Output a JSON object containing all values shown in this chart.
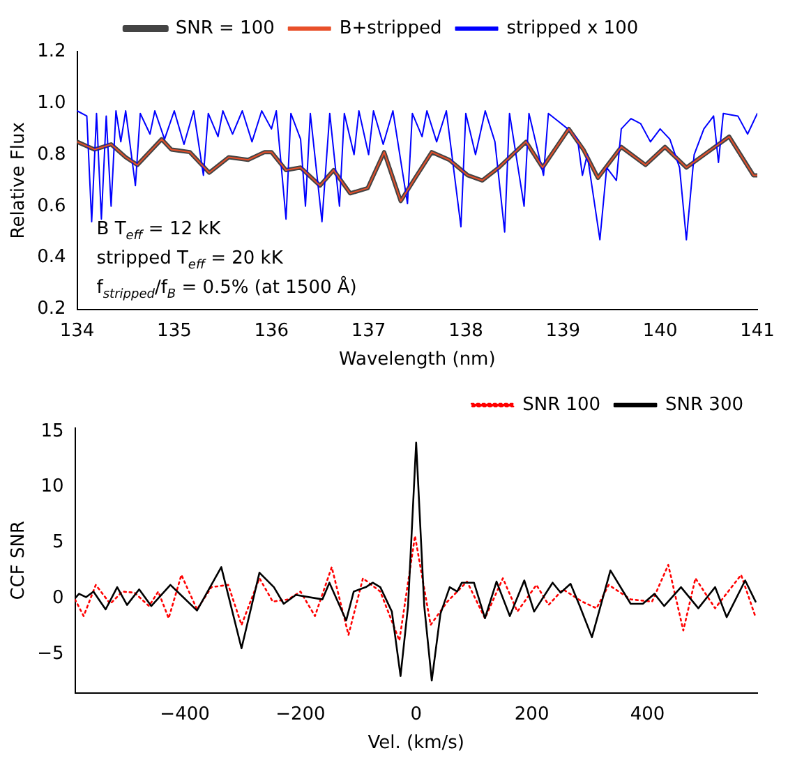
{
  "chart_data": [
    {
      "type": "line",
      "xlabel": "Wavelength (nm)",
      "ylabel": "Relative Flux",
      "xlim": [
        134,
        141
      ],
      "ylim": [
        0.2,
        1.2
      ],
      "xticks": [
        134,
        135,
        136,
        137,
        138,
        139,
        140,
        141
      ],
      "yticks": [
        0.2,
        0.4,
        0.6,
        0.8,
        {
          "value": 1,
          "label": "1.0"
        },
        1.2
      ],
      "grid": false,
      "legend": "top",
      "marker": "none",
      "annotations": [
        "B T$_{eff}$ = 12 kK",
        "stripped T$_{eff}$ = 20 kK",
        "f$_{stripped}$/f$_{B}$ = 0.5% (at 1500 Å)"
      ],
      "series": [
        {
          "name": "SNR = 100",
          "color": "#444444",
          "line_style": "solid",
          "x": [
            134,
            134.18,
            134.35,
            134.5,
            134.62,
            134.87,
            134.97,
            135.16,
            135.36,
            135.56,
            135.76,
            135.93,
            136,
            136.15,
            136.3,
            136.5,
            136.64,
            136.81,
            136.99,
            137.16,
            137.33,
            137.48,
            137.65,
            137.83,
            138.02,
            138.17,
            138.34,
            138.62,
            138.79,
            139.06,
            139.21,
            139.36,
            139.6,
            139.85,
            140.05,
            140.27,
            140.49,
            140.71,
            140.96,
            141
          ],
          "values": [
            0.85,
            0.82,
            0.84,
            0.79,
            0.76,
            0.86,
            0.82,
            0.81,
            0.73,
            0.79,
            0.78,
            0.81,
            0.81,
            0.74,
            0.75,
            0.68,
            0.74,
            0.65,
            0.67,
            0.81,
            0.62,
            0.71,
            0.81,
            0.78,
            0.72,
            0.7,
            0.75,
            0.85,
            0.75,
            0.9,
            0.82,
            0.71,
            0.83,
            0.76,
            0.83,
            0.75,
            0.81,
            0.87,
            0.72,
            0.72
          ]
        },
        {
          "name": "B+stripped",
          "color": "#e8502a",
          "line_style": "solid",
          "x": [
            134,
            134.18,
            134.35,
            134.5,
            134.62,
            134.87,
            134.97,
            135.16,
            135.36,
            135.56,
            135.76,
            135.93,
            136,
            136.15,
            136.3,
            136.5,
            136.64,
            136.81,
            136.99,
            137.16,
            137.33,
            137.48,
            137.65,
            137.83,
            138.02,
            138.17,
            138.34,
            138.62,
            138.79,
            139.06,
            139.21,
            139.36,
            139.6,
            139.85,
            140.05,
            140.27,
            140.49,
            140.71,
            140.96,
            141
          ],
          "values": [
            0.85,
            0.82,
            0.84,
            0.79,
            0.76,
            0.86,
            0.82,
            0.81,
            0.73,
            0.79,
            0.78,
            0.81,
            0.81,
            0.74,
            0.75,
            0.68,
            0.74,
            0.65,
            0.67,
            0.81,
            0.62,
            0.71,
            0.81,
            0.78,
            0.72,
            0.7,
            0.75,
            0.85,
            0.75,
            0.9,
            0.82,
            0.71,
            0.83,
            0.76,
            0.83,
            0.75,
            0.81,
            0.87,
            0.72,
            0.72
          ]
        },
        {
          "name": "stripped x 100",
          "color": "#0000ff",
          "line_style": "solid",
          "x": [
            134,
            134.1,
            134.15,
            134.2,
            134.25,
            134.3,
            134.35,
            134.4,
            134.45,
            134.5,
            134.6,
            134.65,
            134.75,
            134.8,
            134.9,
            135,
            135.1,
            135.2,
            135.3,
            135.35,
            135.45,
            135.5,
            135.6,
            135.7,
            135.8,
            135.9,
            136,
            136.05,
            136.15,
            136.2,
            136.3,
            136.35,
            136.4,
            136.52,
            136.6,
            136.7,
            136.75,
            136.85,
            136.9,
            137,
            137.05,
            137.15,
            137.25,
            137.4,
            137.45,
            137.55,
            137.6,
            137.7,
            137.8,
            137.95,
            138,
            138.1,
            138.2,
            138.3,
            138.4,
            138.45,
            138.6,
            138.65,
            138.8,
            138.85,
            138.95,
            139.05,
            139.15,
            139.2,
            139.25,
            139.38,
            139.45,
            139.55,
            139.6,
            139.7,
            139.8,
            139.9,
            140,
            140.1,
            140.2,
            140.27,
            140.35,
            140.45,
            140.55,
            140.6,
            140.65,
            140.8,
            140.9,
            141
          ],
          "values": [
            0.97,
            0.95,
            0.54,
            0.96,
            0.55,
            0.95,
            0.6,
            0.97,
            0.85,
            0.97,
            0.68,
            0.96,
            0.88,
            0.97,
            0.86,
            0.97,
            0.84,
            0.97,
            0.72,
            0.96,
            0.87,
            0.97,
            0.88,
            0.97,
            0.85,
            0.97,
            0.9,
            0.97,
            0.55,
            0.96,
            0.86,
            0.6,
            0.96,
            0.54,
            0.96,
            0.6,
            0.96,
            0.8,
            0.97,
            0.8,
            0.97,
            0.84,
            0.97,
            0.61,
            0.96,
            0.87,
            0.97,
            0.85,
            0.97,
            0.52,
            0.96,
            0.8,
            0.97,
            0.85,
            0.5,
            0.96,
            0.6,
            0.96,
            0.72,
            0.96,
            0.93,
            0.9,
            0.86,
            0.72,
            0.8,
            0.47,
            0.75,
            0.7,
            0.9,
            0.94,
            0.92,
            0.85,
            0.9,
            0.86,
            0.75,
            0.47,
            0.8,
            0.9,
            0.95,
            0.77,
            0.96,
            0.95,
            0.88,
            0.96
          ]
        }
      ]
    },
    {
      "type": "line",
      "xlabel": "Vel. (km/s)",
      "ylabel": "CCF SNR",
      "xlim": [
        -590,
        590
      ],
      "ylim": [
        -8.5,
        15.3
      ],
      "xticks": [
        {
          "value": -400,
          "label": "−400"
        },
        {
          "value": -200,
          "label": "−200"
        },
        0,
        200,
        400
      ],
      "yticks": [
        {
          "value": -5,
          "label": "−5"
        },
        0,
        5,
        10,
        15
      ],
      "grid": false,
      "legend": "top right",
      "marker": "none",
      "series": [
        {
          "name": "SNR 100",
          "color": "#ff0000",
          "line_style": "dotted",
          "x": [
            -590,
            -575,
            -554,
            -529,
            -508,
            -487,
            -462,
            -446,
            -428,
            -406,
            -379,
            -354,
            -325,
            -302,
            -271,
            -248,
            -221,
            -200,
            -175,
            -146,
            -117,
            -92,
            -62,
            -29,
            -2,
            25,
            54,
            88,
            119,
            150,
            175,
            208,
            229,
            254,
            287,
            312,
            333,
            371,
            408,
            436,
            462,
            483,
            517,
            562,
            587
          ],
          "values": [
            -0.1,
            -1.6,
            1.2,
            -0.5,
            0.6,
            0.5,
            -0.7,
            0.6,
            -1.8,
            2.1,
            -1,
            1,
            1.2,
            -2.4,
            1.8,
            -0.3,
            -0.1,
            0.6,
            -1.6,
            2.8,
            -3.3,
            1.8,
            0.6,
            -3.8,
            5.6,
            -2.4,
            -0.3,
            1.5,
            -1.8,
            1.8,
            -1.2,
            1.2,
            -0.6,
            0.8,
            -0.3,
            -0.9,
            1.2,
            -0.1,
            -0.3,
            3,
            -2.9,
            1.8,
            -0.9,
            2.1,
            -1.7
          ]
        },
        {
          "name": "SNR 300",
          "color": "#000000",
          "line_style": "solid",
          "x": [
            -590,
            -583,
            -571,
            -558,
            -537,
            -517,
            -500,
            -479,
            -458,
            -425,
            -379,
            -337,
            -302,
            -271,
            -246,
            -229,
            -208,
            -162,
            -150,
            -121,
            -108,
            -87,
            -75,
            -62,
            -42,
            -27,
            -14,
            0,
            14,
            27,
            42,
            58,
            71,
            79,
            100,
            119,
            139,
            162,
            187,
            204,
            236,
            250,
            267,
            283,
            304,
            336,
            371,
            392,
            412,
            429,
            458,
            488,
            517,
            537,
            569,
            587
          ],
          "values": [
            0,
            0.4,
            0.1,
            0.6,
            -1,
            1,
            -0.6,
            0.8,
            -0.7,
            1.2,
            -1.1,
            2.8,
            -4.5,
            2.3,
            1,
            -0.5,
            0.3,
            -0.1,
            1.4,
            -2,
            0.6,
            1,
            1.4,
            1,
            -1.2,
            -7,
            -0.7,
            14,
            -0.7,
            -7.4,
            -1.4,
            1,
            0.6,
            1.4,
            1.4,
            -1.8,
            1.5,
            -1.6,
            1.6,
            -1.2,
            1.4,
            0.5,
            1.3,
            -0.7,
            -3.5,
            2.5,
            -0.5,
            -0.5,
            0.4,
            -0.7,
            1,
            -0.9,
            1,
            -1.7,
            1.6,
            -0.3
          ]
        }
      ]
    }
  ]
}
